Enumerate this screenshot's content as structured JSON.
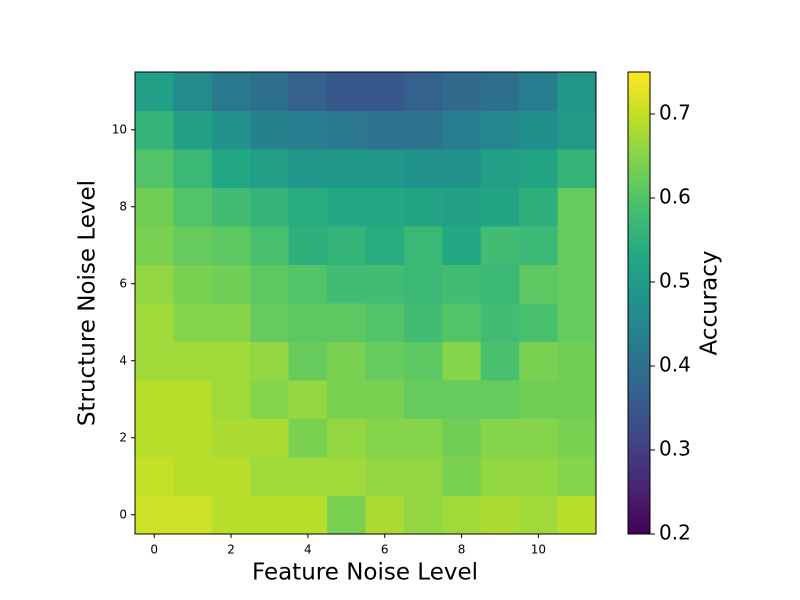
{
  "chart_data": {
    "type": "heatmap",
    "xlabel": "Feature Noise Level",
    "ylabel": "Structure Noise Level",
    "x": [
      0,
      1,
      2,
      3,
      4,
      5,
      6,
      7,
      8,
      9,
      10,
      11
    ],
    "y": [
      0,
      1,
      2,
      3,
      4,
      5,
      6,
      7,
      8,
      9,
      10,
      11
    ],
    "xlim": [
      -0.5,
      11.5
    ],
    "ylim": [
      -0.5,
      11.5
    ],
    "xticks": [
      0,
      2,
      4,
      6,
      8,
      10
    ],
    "yticks": [
      0,
      2,
      4,
      6,
      8,
      10
    ],
    "z": [
      [
        0.71,
        0.71,
        0.69,
        0.69,
        0.69,
        0.64,
        0.68,
        0.66,
        0.67,
        0.68,
        0.67,
        0.69
      ],
      [
        0.7,
        0.69,
        0.69,
        0.67,
        0.67,
        0.67,
        0.66,
        0.66,
        0.64,
        0.66,
        0.66,
        0.65
      ],
      [
        0.69,
        0.69,
        0.68,
        0.68,
        0.64,
        0.66,
        0.65,
        0.65,
        0.63,
        0.65,
        0.65,
        0.64
      ],
      [
        0.69,
        0.69,
        0.67,
        0.65,
        0.66,
        0.64,
        0.64,
        0.62,
        0.62,
        0.62,
        0.63,
        0.63
      ],
      [
        0.67,
        0.67,
        0.67,
        0.66,
        0.62,
        0.64,
        0.62,
        0.61,
        0.65,
        0.59,
        0.64,
        0.63
      ],
      [
        0.67,
        0.65,
        0.65,
        0.62,
        0.61,
        0.61,
        0.6,
        0.58,
        0.6,
        0.58,
        0.59,
        0.62
      ],
      [
        0.66,
        0.64,
        0.63,
        0.61,
        0.6,
        0.58,
        0.58,
        0.57,
        0.58,
        0.57,
        0.61,
        0.62
      ],
      [
        0.64,
        0.62,
        0.61,
        0.59,
        0.55,
        0.56,
        0.54,
        0.57,
        0.53,
        0.58,
        0.57,
        0.62
      ],
      [
        0.63,
        0.6,
        0.58,
        0.56,
        0.54,
        0.53,
        0.53,
        0.52,
        0.51,
        0.52,
        0.55,
        0.62
      ],
      [
        0.6,
        0.57,
        0.53,
        0.51,
        0.49,
        0.49,
        0.49,
        0.48,
        0.48,
        0.51,
        0.52,
        0.56
      ],
      [
        0.56,
        0.51,
        0.48,
        0.44,
        0.43,
        0.42,
        0.41,
        0.41,
        0.43,
        0.45,
        0.47,
        0.5
      ],
      [
        0.51,
        0.46,
        0.42,
        0.4,
        0.37,
        0.35,
        0.35,
        0.37,
        0.39,
        0.4,
        0.43,
        0.49
      ]
    ],
    "colormap": "viridis",
    "colorbar": {
      "label": "Accuracy",
      "lim": [
        0.2,
        0.75
      ],
      "ticks": [
        0.2,
        0.3,
        0.4,
        0.5,
        0.6,
        0.7
      ]
    }
  }
}
